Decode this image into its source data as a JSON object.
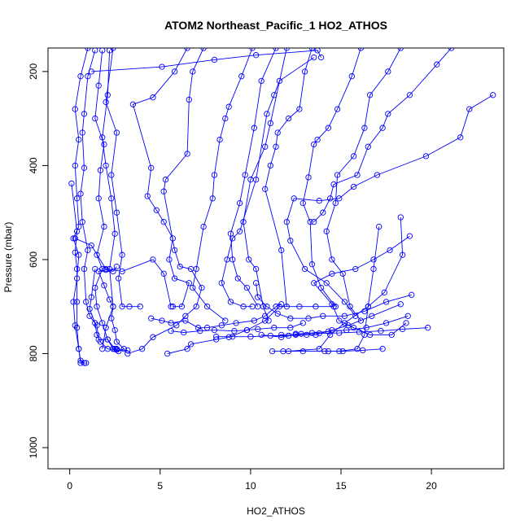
{
  "chart_data": {
    "type": "scatter",
    "title": "ATOM2 Northeast_Pacific_1 HO2_ATHOS",
    "xlabel": "HO2_ATHOS",
    "ylabel": "Pressure (mbar)",
    "xlim": [
      -1.2,
      24.0
    ],
    "ylim": [
      1045,
      150
    ],
    "y_reversed": true,
    "x_ticks": [
      0,
      5,
      10,
      15,
      20
    ],
    "y_ticks": [
      200,
      400,
      600,
      800,
      1000
    ],
    "series_color": "#0000ff",
    "marker": "open-circle",
    "grid": false,
    "profiles": [
      [
        [
          1.0,
          150
        ],
        [
          0.6,
          210
        ],
        [
          0.3,
          280
        ],
        [
          0.5,
          345
        ],
        [
          0.3,
          400
        ],
        [
          0.4,
          470
        ],
        [
          0.5,
          530
        ],
        [
          0.2,
          555
        ],
        [
          0.5,
          590
        ],
        [
          0.4,
          640
        ],
        [
          0.2,
          690
        ],
        [
          0.3,
          740
        ],
        [
          0.5,
          790
        ],
        [
          0.6,
          820
        ],
        [
          0.9,
          820
        ]
      ],
      [
        [
          1.4,
          155
        ],
        [
          1.0,
          210
        ],
        [
          0.8,
          290
        ],
        [
          0.7,
          330
        ],
        [
          0.8,
          405
        ],
        [
          0.6,
          460
        ],
        [
          0.7,
          520
        ],
        [
          1.0,
          580
        ],
        [
          0.8,
          620
        ],
        [
          0.9,
          690
        ],
        [
          1.1,
          720
        ],
        [
          1.5,
          740
        ],
        [
          1.6,
          770
        ],
        [
          2.1,
          770
        ],
        [
          2.4,
          790
        ],
        [
          2.6,
          790
        ]
      ],
      [
        [
          1.8,
          155
        ],
        [
          1.6,
          230
        ],
        [
          1.4,
          300
        ],
        [
          1.9,
          355
        ],
        [
          1.7,
          410
        ],
        [
          1.6,
          470
        ],
        [
          1.9,
          530
        ],
        [
          1.5,
          590
        ],
        [
          1.8,
          620
        ],
        [
          1.4,
          660
        ],
        [
          1.5,
          700
        ],
        [
          1.8,
          735
        ],
        [
          2.1,
          770
        ],
        [
          2.5,
          790
        ]
      ],
      [
        [
          2.2,
          155
        ],
        [
          2.1,
          250
        ],
        [
          1.8,
          340
        ],
        [
          2.0,
          400
        ],
        [
          2.3,
          470
        ],
        [
          2.5,
          545
        ],
        [
          2.2,
          620
        ],
        [
          2.4,
          700
        ],
        [
          2.0,
          745
        ],
        [
          1.8,
          790
        ]
      ],
      [
        [
          2.4,
          150
        ],
        [
          2.0,
          265
        ],
        [
          2.6,
          330
        ],
        [
          2.3,
          420
        ],
        [
          2.6,
          500
        ],
        [
          2.9,
          590
        ],
        [
          2.7,
          640
        ],
        [
          2.9,
          700
        ],
        [
          3.3,
          700
        ],
        [
          3.9,
          700
        ]
      ],
      [
        [
          0.3,
          555
        ],
        [
          1.2,
          570
        ],
        [
          2.0,
          620
        ],
        [
          2.9,
          625
        ],
        [
          4.6,
          600
        ],
        [
          5.2,
          630
        ],
        [
          5.6,
          700
        ]
      ],
      [
        [
          6.5,
          150
        ],
        [
          5.8,
          200
        ],
        [
          4.6,
          255
        ],
        [
          3.5,
          270
        ],
        [
          4.5,
          405
        ],
        [
          4.3,
          465
        ],
        [
          4.8,
          495
        ],
        [
          5.2,
          520
        ],
        [
          5.7,
          555
        ],
        [
          5.5,
          600
        ],
        [
          5.8,
          640
        ],
        [
          6.6,
          650
        ],
        [
          6.2,
          700
        ],
        [
          5.7,
          700
        ]
      ],
      [
        [
          7.4,
          150
        ],
        [
          6.8,
          200
        ],
        [
          6.6,
          260
        ],
        [
          6.5,
          375
        ],
        [
          5.3,
          430
        ],
        [
          5.2,
          455
        ],
        [
          5.8,
          580
        ],
        [
          6.1,
          615
        ],
        [
          6.7,
          620
        ],
        [
          7.3,
          660
        ],
        [
          7.0,
          700
        ],
        [
          6.4,
          720
        ],
        [
          5.9,
          740
        ],
        [
          4.6,
          765
        ],
        [
          4.0,
          790
        ],
        [
          3.2,
          800
        ]
      ],
      [
        [
          10.1,
          150
        ],
        [
          9.5,
          210
        ],
        [
          8.8,
          275
        ],
        [
          8.6,
          300
        ],
        [
          8.3,
          345
        ],
        [
          8.0,
          420
        ],
        [
          7.9,
          470
        ],
        [
          7.4,
          530
        ],
        [
          7.0,
          620
        ],
        [
          6.8,
          660
        ],
        [
          7.6,
          700
        ],
        [
          8.6,
          730
        ]
      ],
      [
        [
          11.4,
          150
        ],
        [
          10.6,
          220
        ],
        [
          10.2,
          320
        ],
        [
          9.7,
          420
        ],
        [
          9.4,
          480
        ],
        [
          8.9,
          545
        ],
        [
          9.0,
          600
        ],
        [
          9.3,
          640
        ],
        [
          9.8,
          660
        ],
        [
          10.4,
          700
        ]
      ],
      [
        [
          12.0,
          150
        ],
        [
          11.1,
          310
        ],
        [
          10.8,
          360
        ],
        [
          10.0,
          430
        ],
        [
          9.6,
          520
        ],
        [
          9.9,
          600
        ],
        [
          10.3,
          620
        ],
        [
          10.7,
          700
        ],
        [
          11.0,
          730
        ]
      ],
      [
        [
          13.5,
          170
        ],
        [
          11.6,
          220
        ],
        [
          11.3,
          250
        ],
        [
          10.9,
          290
        ],
        [
          10.3,
          430
        ],
        [
          9.4,
          540
        ],
        [
          9.0,
          555
        ],
        [
          8.7,
          600
        ],
        [
          8.4,
          650
        ],
        [
          8.9,
          690
        ],
        [
          9.6,
          700
        ],
        [
          10.1,
          700
        ]
      ],
      [
        [
          13.4,
          150
        ],
        [
          13.0,
          200
        ],
        [
          12.7,
          280
        ],
        [
          12.1,
          300
        ],
        [
          11.5,
          330
        ],
        [
          11.4,
          360
        ],
        [
          11.1,
          400
        ],
        [
          10.8,
          450
        ],
        [
          11.7,
          580
        ],
        [
          12.0,
          700
        ]
      ],
      [
        [
          16.1,
          150
        ],
        [
          15.6,
          210
        ],
        [
          14.8,
          280
        ],
        [
          14.3,
          320
        ],
        [
          13.7,
          345
        ],
        [
          13.5,
          355
        ],
        [
          13.2,
          425
        ],
        [
          12.9,
          480
        ],
        [
          13.3,
          520
        ],
        [
          13.4,
          610
        ],
        [
          13.9,
          660
        ],
        [
          14.7,
          700
        ]
      ],
      [
        [
          18.3,
          150
        ],
        [
          17.6,
          200
        ],
        [
          16.6,
          250
        ],
        [
          16.3,
          320
        ],
        [
          15.7,
          380
        ],
        [
          14.8,
          420
        ],
        [
          14.7,
          480
        ],
        [
          14.2,
          540
        ],
        [
          14.5,
          600
        ],
        [
          15.1,
          630
        ],
        [
          15.5,
          700
        ],
        [
          16.1,
          730
        ]
      ],
      [
        [
          21.1,
          150
        ],
        [
          20.3,
          185
        ],
        [
          18.8,
          250
        ],
        [
          17.6,
          290
        ],
        [
          17.3,
          320
        ],
        [
          16.5,
          360
        ],
        [
          15.9,
          420
        ],
        [
          14.6,
          440
        ],
        [
          14.4,
          470
        ],
        [
          14.0,
          500
        ],
        [
          13.5,
          520
        ]
      ],
      [
        [
          23.4,
          250
        ],
        [
          22.1,
          280
        ],
        [
          21.6,
          340
        ],
        [
          19.7,
          380
        ],
        [
          17.0,
          420
        ],
        [
          15.7,
          445
        ],
        [
          14.9,
          470
        ],
        [
          13.8,
          475
        ],
        [
          12.4,
          470
        ],
        [
          12.0,
          520
        ],
        [
          12.2,
          560
        ],
        [
          13.0,
          620
        ],
        [
          14.2,
          650
        ],
        [
          15.2,
          690
        ],
        [
          15.8,
          720
        ]
      ],
      [
        [
          18.8,
          550
        ],
        [
          17.7,
          580
        ],
        [
          16.8,
          600
        ],
        [
          15.8,
          620
        ],
        [
          14.5,
          630
        ],
        [
          13.5,
          650
        ],
        [
          14.5,
          695
        ],
        [
          14.9,
          730
        ],
        [
          15.7,
          745
        ],
        [
          16.6,
          760
        ],
        [
          17.8,
          760
        ],
        [
          18.6,
          735
        ]
      ],
      [
        [
          18.3,
          510
        ],
        [
          18.4,
          590
        ],
        [
          17.4,
          670
        ],
        [
          16.5,
          700
        ],
        [
          15.2,
          735
        ],
        [
          14.4,
          760
        ],
        [
          13.8,
          790
        ],
        [
          12.1,
          795
        ],
        [
          11.2,
          795
        ]
      ],
      [
        [
          17.1,
          530
        ],
        [
          16.8,
          620
        ],
        [
          16.5,
          700
        ],
        [
          16.3,
          760
        ],
        [
          15.9,
          790
        ],
        [
          14.9,
          795
        ],
        [
          14.3,
          795
        ]
      ],
      [
        [
          18.9,
          675
        ],
        [
          17.5,
          690
        ],
        [
          16.3,
          710
        ],
        [
          15.2,
          720
        ],
        [
          14.0,
          720
        ],
        [
          13.2,
          725
        ],
        [
          12.2,
          725
        ],
        [
          11.5,
          715
        ],
        [
          10.9,
          700
        ],
        [
          10.4,
          680
        ],
        [
          10.3,
          650
        ]
      ],
      [
        [
          18.3,
          695
        ],
        [
          16.7,
          720
        ],
        [
          15.4,
          740
        ],
        [
          14.5,
          750
        ],
        [
          13.6,
          760
        ],
        [
          12.5,
          760
        ],
        [
          11.7,
          765
        ],
        [
          10.6,
          760
        ]
      ],
      [
        [
          11.7,
          695
        ],
        [
          11.4,
          700
        ],
        [
          10.8,
          720
        ],
        [
          10.2,
          730
        ],
        [
          9.2,
          735
        ],
        [
          8.4,
          740
        ],
        [
          7.6,
          745
        ],
        [
          7.1,
          745
        ],
        [
          6.4,
          730
        ],
        [
          5.6,
          735
        ],
        [
          5.1,
          730
        ],
        [
          4.5,
          725
        ]
      ],
      [
        [
          14.6,
          700
        ],
        [
          13.6,
          700
        ],
        [
          12.7,
          700
        ],
        [
          11.6,
          700
        ],
        [
          10.8,
          730
        ],
        [
          9.8,
          750
        ],
        [
          8.8,
          765
        ],
        [
          8.1,
          770
        ],
        [
          6.7,
          780
        ],
        [
          6.5,
          790
        ],
        [
          5.4,
          800
        ]
      ],
      [
        [
          12.9,
          735
        ],
        [
          12.2,
          745
        ],
        [
          11.3,
          745
        ],
        [
          10.4,
          748
        ],
        [
          9.8,
          750
        ],
        [
          9.1,
          752
        ],
        [
          8.0,
          750
        ],
        [
          7.2,
          752
        ],
        [
          6.3,
          755
        ],
        [
          5.6,
          752
        ]
      ],
      [
        [
          13.1,
          760
        ],
        [
          12.1,
          762
        ],
        [
          11.1,
          762
        ],
        [
          10.0,
          764
        ],
        [
          9.0,
          764
        ],
        [
          8.1,
          764
        ]
      ],
      [
        [
          19.8,
          745
        ],
        [
          18.4,
          748
        ],
        [
          17.2,
          752
        ],
        [
          16.0,
          754
        ],
        [
          14.9,
          756
        ],
        [
          13.8,
          757
        ],
        [
          12.8,
          758
        ],
        [
          11.7,
          760
        ]
      ],
      [
        [
          18.7,
          720
        ],
        [
          17.5,
          735
        ],
        [
          16.4,
          745
        ],
        [
          15.3,
          750
        ],
        [
          14.3,
          753
        ],
        [
          13.4,
          756
        ],
        [
          12.5,
          758
        ]
      ],
      [
        [
          17.3,
          790
        ],
        [
          16.2,
          793
        ],
        [
          15.1,
          795
        ],
        [
          14.1,
          795
        ],
        [
          12.9,
          795
        ],
        [
          11.8,
          795
        ]
      ],
      [
        [
          1.2,
          200
        ],
        [
          5.1,
          190
        ],
        [
          8.0,
          175
        ],
        [
          10.3,
          165
        ],
        [
          13.7,
          155
        ],
        [
          13.9,
          170
        ]
      ],
      [
        [
          0.1,
          438
        ],
        [
          0.4,
          540
        ],
        [
          0.3,
          585
        ],
        [
          0.4,
          620
        ],
        [
          0.4,
          690
        ],
        [
          0.4,
          745
        ],
        [
          0.5,
          790
        ],
        [
          0.6,
          815
        ],
        [
          0.8,
          820
        ]
      ],
      [
        [
          2.6,
          615
        ],
        [
          2.4,
          625
        ],
        [
          2.0,
          622
        ],
        [
          1.6,
          625
        ],
        [
          1.9,
          655
        ],
        [
          2.2,
          685
        ],
        [
          2.4,
          700
        ],
        [
          2.3,
          725
        ],
        [
          2.5,
          750
        ],
        [
          2.6,
          775
        ],
        [
          3.0,
          790
        ],
        [
          2.7,
          795
        ],
        [
          2.4,
          790
        ]
      ],
      [
        [
          1.4,
          620
        ],
        [
          1.2,
          680
        ],
        [
          1.1,
          705
        ],
        [
          1.4,
          735
        ],
        [
          1.5,
          760
        ],
        [
          1.7,
          775
        ],
        [
          2.1,
          790
        ],
        [
          2.6,
          792
        ],
        [
          3.2,
          793
        ]
      ]
    ]
  }
}
